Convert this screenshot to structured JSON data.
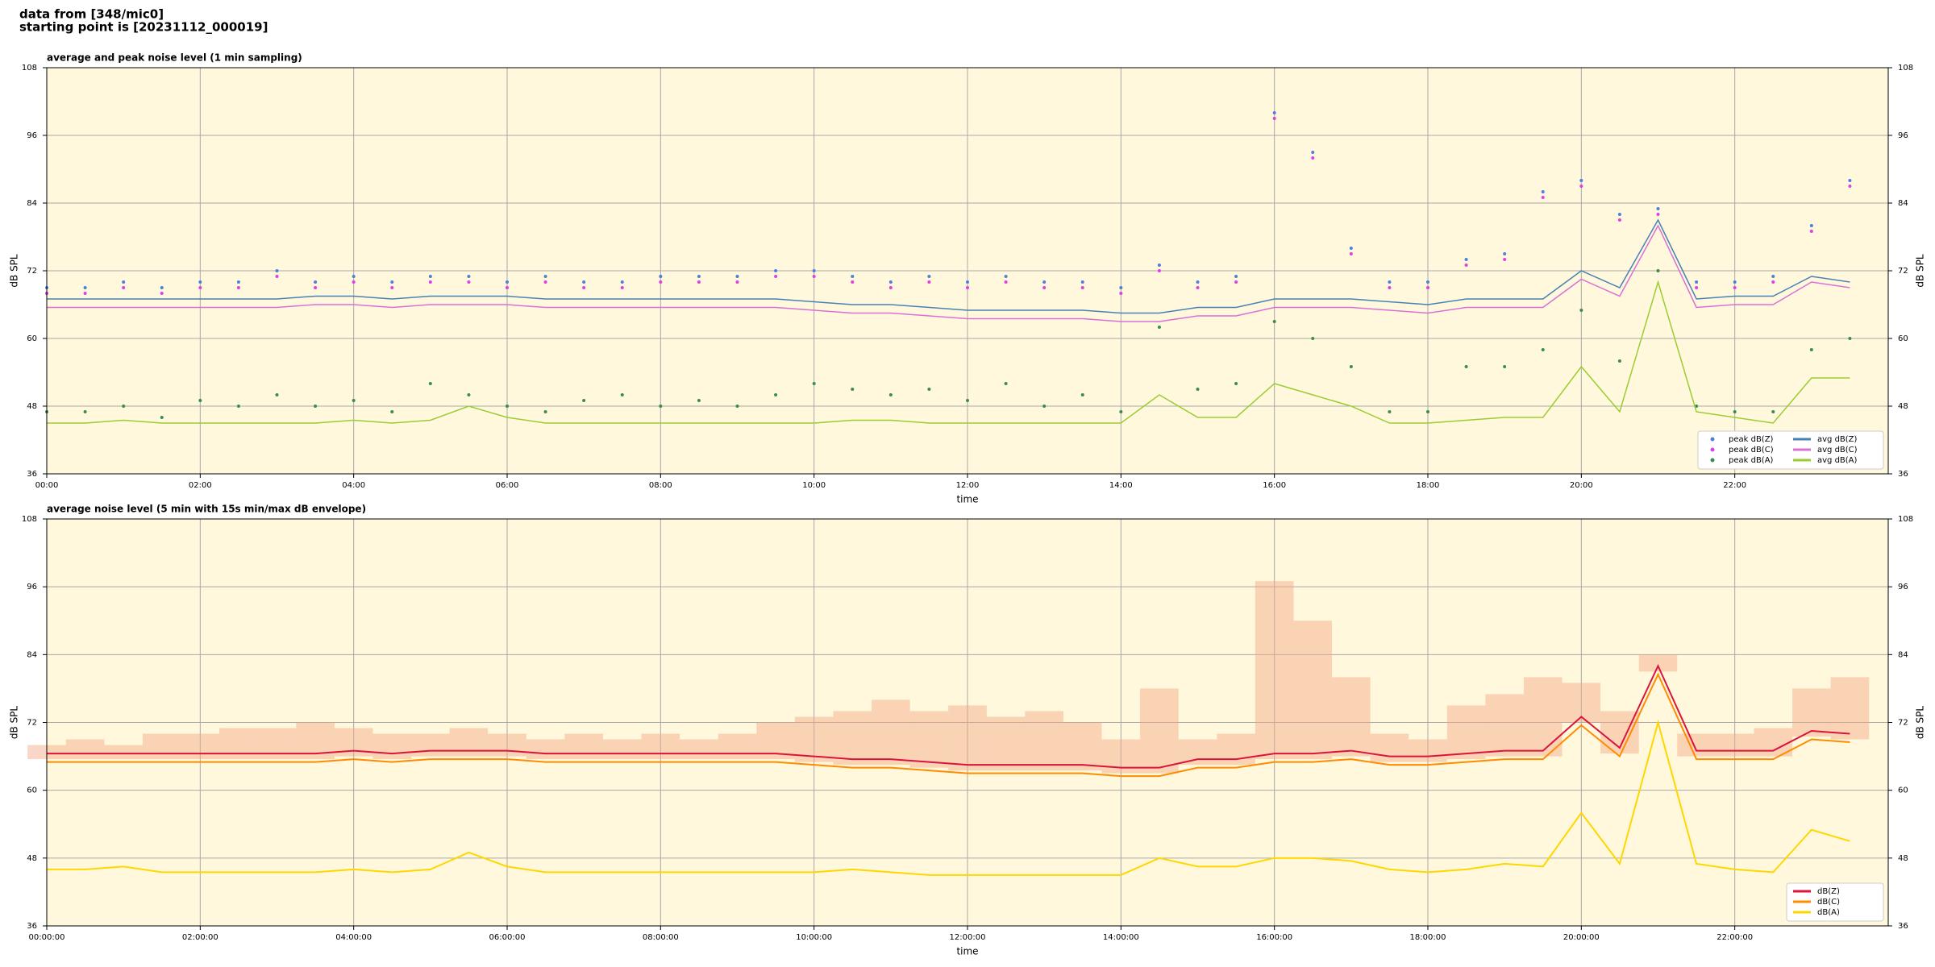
{
  "header": {
    "lines": [
      "data from [348/mic0]",
      "starting point is [20231112_000019]"
    ]
  },
  "chart_data": [
    {
      "type": "line",
      "title": "average and peak noise level (1 min sampling)",
      "x_label": "time",
      "y_label": "dB SPL",
      "xlim": [
        0,
        24
      ],
      "ylim": [
        36,
        108
      ],
      "yticks": [
        36,
        48,
        60,
        72,
        84,
        96,
        108
      ],
      "xticks": [
        {
          "value": 0,
          "label": "00:00"
        },
        {
          "value": 2,
          "label": "02:00"
        },
        {
          "value": 4,
          "label": "04:00"
        },
        {
          "value": 6,
          "label": "06:00"
        },
        {
          "value": 8,
          "label": "08:00"
        },
        {
          "value": 10,
          "label": "10:00"
        },
        {
          "value": 12,
          "label": "12:00"
        },
        {
          "value": 14,
          "label": "14:00"
        },
        {
          "value": 16,
          "label": "16:00"
        },
        {
          "value": 18,
          "label": "18:00"
        },
        {
          "value": 20,
          "label": "20:00"
        },
        {
          "value": 22,
          "label": "22:00"
        }
      ],
      "grid": true,
      "background": "#fff8dc",
      "legend": "lower right",
      "legend_columns": 2,
      "x": [
        0,
        0.5,
        1,
        1.5,
        2,
        2.5,
        3,
        3.5,
        4,
        4.5,
        5,
        5.5,
        6,
        6.5,
        7,
        7.5,
        8,
        8.5,
        9,
        9.5,
        10,
        10.5,
        11,
        11.5,
        12,
        12.5,
        13,
        13.5,
        14,
        14.5,
        15,
        15.5,
        16,
        16.5,
        17,
        17.5,
        18,
        18.5,
        19,
        19.5,
        20,
        20.5,
        21,
        21.5,
        22,
        22.5,
        23,
        23.5
      ],
      "series": [
        {
          "name": "peak dB(Z)",
          "kind": "scatter",
          "color": "#4f7fd9",
          "values": [
            69,
            69,
            70,
            69,
            70,
            70,
            72,
            70,
            71,
            70,
            71,
            71,
            70,
            71,
            70,
            70,
            71,
            71,
            71,
            72,
            72,
            71,
            70,
            71,
            70,
            71,
            70,
            70,
            69,
            73,
            70,
            71,
            100,
            93,
            76,
            70,
            70,
            74,
            75,
            86,
            88,
            82,
            83,
            70,
            70,
            71,
            80,
            88
          ]
        },
        {
          "name": "peak dB(C)",
          "kind": "scatter",
          "color": "#e040e0",
          "values": [
            68,
            68,
            69,
            68,
            69,
            69,
            71,
            69,
            70,
            69,
            70,
            70,
            69,
            70,
            69,
            69,
            70,
            70,
            70,
            71,
            71,
            70,
            69,
            70,
            69,
            70,
            69,
            69,
            68,
            72,
            69,
            70,
            99,
            92,
            75,
            69,
            69,
            73,
            74,
            85,
            87,
            81,
            82,
            69,
            69,
            70,
            79,
            87
          ]
        },
        {
          "name": "peak dB(A)",
          "kind": "scatter",
          "color": "#3c8c50",
          "values": [
            47,
            47,
            48,
            46,
            49,
            48,
            50,
            48,
            49,
            47,
            52,
            50,
            48,
            47,
            49,
            50,
            48,
            49,
            48,
            50,
            52,
            51,
            50,
            51,
            49,
            52,
            48,
            50,
            47,
            62,
            51,
            52,
            63,
            60,
            55,
            47,
            47,
            55,
            55,
            58,
            65,
            56,
            72,
            48,
            47,
            47,
            58,
            60
          ]
        },
        {
          "name": "avg dB(Z)",
          "kind": "line",
          "color": "#4682b4",
          "values": [
            67,
            67,
            67,
            67,
            67,
            67,
            67,
            67.5,
            67.5,
            67,
            67.5,
            67.5,
            67.5,
            67,
            67,
            67,
            67,
            67,
            67,
            67,
            66.5,
            66,
            66,
            65.5,
            65,
            65,
            65,
            65,
            64.5,
            64.5,
            65.5,
            65.5,
            67,
            67,
            67,
            66.5,
            66,
            67,
            67,
            67,
            72,
            69,
            81,
            67,
            67.5,
            67.5,
            71,
            70
          ]
        },
        {
          "name": "avg dB(C)",
          "kind": "line",
          "color": "#da70d6",
          "values": [
            65.5,
            65.5,
            65.5,
            65.5,
            65.5,
            65.5,
            65.5,
            66,
            66,
            65.5,
            66,
            66,
            66,
            65.5,
            65.5,
            65.5,
            65.5,
            65.5,
            65.5,
            65.5,
            65,
            64.5,
            64.5,
            64,
            63.5,
            63.5,
            63.5,
            63.5,
            63,
            63,
            64,
            64,
            65.5,
            65.5,
            65.5,
            65,
            64.5,
            65.5,
            65.5,
            65.5,
            70.5,
            67.5,
            80,
            65.5,
            66,
            66,
            70,
            69
          ]
        },
        {
          "name": "avg dB(A)",
          "kind": "line",
          "color": "#9acd32",
          "values": [
            45,
            45,
            45.5,
            45,
            45,
            45,
            45,
            45,
            45.5,
            45,
            45.5,
            48,
            46,
            45,
            45,
            45,
            45,
            45,
            45,
            45,
            45,
            45.5,
            45.5,
            45,
            45,
            45,
            45,
            45,
            45,
            50,
            46,
            46,
            52,
            50,
            48,
            45,
            45,
            45.5,
            46,
            46,
            55,
            47,
            70,
            47,
            46,
            45,
            53,
            53
          ]
        }
      ]
    },
    {
      "type": "line",
      "title": "average noise level (5 min with 15s min/max dB envelope)",
      "x_label": "time",
      "y_label": "dB SPL",
      "xlim": [
        0,
        24
      ],
      "ylim": [
        36,
        108
      ],
      "yticks": [
        36,
        48,
        60,
        72,
        84,
        96,
        108
      ],
      "xticks": [
        {
          "value": 0,
          "label": "00:00:00"
        },
        {
          "value": 2,
          "label": "02:00:00"
        },
        {
          "value": 4,
          "label": "04:00:00"
        },
        {
          "value": 6,
          "label": "06:00:00"
        },
        {
          "value": 8,
          "label": "08:00:00"
        },
        {
          "value": 10,
          "label": "10:00:00"
        },
        {
          "value": 12,
          "label": "12:00:00"
        },
        {
          "value": 14,
          "label": "14:00:00"
        },
        {
          "value": 16,
          "label": "16:00:00"
        },
        {
          "value": 18,
          "label": "18:00:00"
        },
        {
          "value": 20,
          "label": "20:00:00"
        },
        {
          "value": 22,
          "label": "22:00:00"
        }
      ],
      "grid": true,
      "background": "#fff8dc",
      "legend": "lower right",
      "legend_columns": 1,
      "x": [
        0,
        0.5,
        1,
        1.5,
        2,
        2.5,
        3,
        3.5,
        4,
        4.5,
        5,
        5.5,
        6,
        6.5,
        7,
        7.5,
        8,
        8.5,
        9,
        9.5,
        10,
        10.5,
        11,
        11.5,
        12,
        12.5,
        13,
        13.5,
        14,
        14.5,
        15,
        15.5,
        16,
        16.5,
        17,
        17.5,
        18,
        18.5,
        19,
        19.5,
        20,
        20.5,
        21,
        21.5,
        22,
        22.5,
        23,
        23.5
      ],
      "envelope": {
        "color": "#f4a582",
        "low": [
          65.5,
          65.5,
          65.5,
          65.5,
          65.5,
          65.5,
          65.5,
          65.5,
          66,
          65.5,
          66,
          66,
          66,
          65.5,
          65.5,
          65.5,
          65.5,
          65.5,
          65.5,
          65.5,
          65,
          64.5,
          64.5,
          64,
          63.5,
          63.5,
          63.5,
          63.5,
          63,
          63,
          64.5,
          64.5,
          65.5,
          65.5,
          66,
          65,
          65,
          65.5,
          66,
          66,
          72,
          66.5,
          81,
          66,
          66,
          66,
          69.5,
          69
        ],
        "high": [
          68,
          69,
          68,
          70,
          70,
          71,
          71,
          72,
          71,
          70,
          70,
          71,
          70,
          69,
          70,
          69,
          70,
          69,
          70,
          72,
          73,
          74,
          76,
          74,
          75,
          73,
          74,
          72,
          69,
          78,
          69,
          70,
          97,
          90,
          80,
          70,
          69,
          75,
          77,
          80,
          79,
          74,
          84,
          70,
          70,
          71,
          78,
          80
        ]
      },
      "series": [
        {
          "name": "dB(Z)",
          "kind": "line",
          "color": "#dc143c",
          "values": [
            66.5,
            66.5,
            66.5,
            66.5,
            66.5,
            66.5,
            66.5,
            66.5,
            67,
            66.5,
            67,
            67,
            67,
            66.5,
            66.5,
            66.5,
            66.5,
            66.5,
            66.5,
            66.5,
            66,
            65.5,
            65.5,
            65,
            64.5,
            64.5,
            64.5,
            64.5,
            64,
            64,
            65.5,
            65.5,
            66.5,
            66.5,
            67,
            66,
            66,
            66.5,
            67,
            67,
            73,
            67.5,
            82,
            67,
            67,
            67,
            70.5,
            70
          ]
        },
        {
          "name": "dB(C)",
          "kind": "line",
          "color": "#ff8c00",
          "values": [
            65,
            65,
            65,
            65,
            65,
            65,
            65,
            65,
            65.5,
            65,
            65.5,
            65.5,
            65.5,
            65,
            65,
            65,
            65,
            65,
            65,
            65,
            64.5,
            64,
            64,
            63.5,
            63,
            63,
            63,
            63,
            62.5,
            62.5,
            64,
            64,
            65,
            65,
            65.5,
            64.5,
            64.5,
            65,
            65.5,
            65.5,
            71.5,
            66,
            80.5,
            65.5,
            65.5,
            65.5,
            69,
            68.5
          ]
        },
        {
          "name": "dB(A)",
          "kind": "line",
          "color": "#ffd700",
          "values": [
            46,
            46,
            46.5,
            45.5,
            45.5,
            45.5,
            45.5,
            45.5,
            46,
            45.5,
            46,
            49,
            46.5,
            45.5,
            45.5,
            45.5,
            45.5,
            45.5,
            45.5,
            45.5,
            45.5,
            46,
            45.5,
            45,
            45,
            45,
            45,
            45,
            45,
            48,
            46.5,
            46.5,
            48,
            48,
            47.5,
            46,
            45.5,
            46,
            47,
            46.5,
            56,
            47,
            72,
            47,
            46,
            45.5,
            53,
            51
          ]
        }
      ]
    }
  ]
}
